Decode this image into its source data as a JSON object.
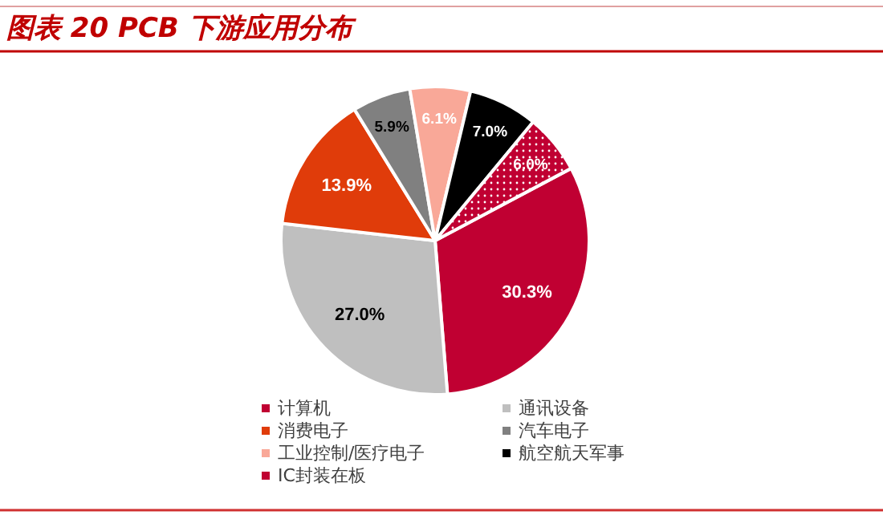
{
  "chart_data": {
    "type": "pie",
    "title": "图表 20 PCB 下游应用分布",
    "categories": [
      "计算机",
      "通讯设备",
      "消费电子",
      "汽车电子",
      "工业控制/医疗电子",
      "航空航天军事",
      "IC封装在板"
    ],
    "values": [
      30.3,
      27.0,
      13.9,
      5.9,
      6.1,
      7.0,
      6.0
    ],
    "value_labels": [
      "30.3%",
      "27.0%",
      "13.9%",
      "5.9%",
      "6.1%",
      "7.0%",
      "6.0%"
    ],
    "colors": [
      "#c00032",
      "#bfbfbf",
      "#e03c0a",
      "#808080",
      "#f9a898",
      "#000000",
      "#c00032"
    ],
    "legend": "bottom"
  }
}
